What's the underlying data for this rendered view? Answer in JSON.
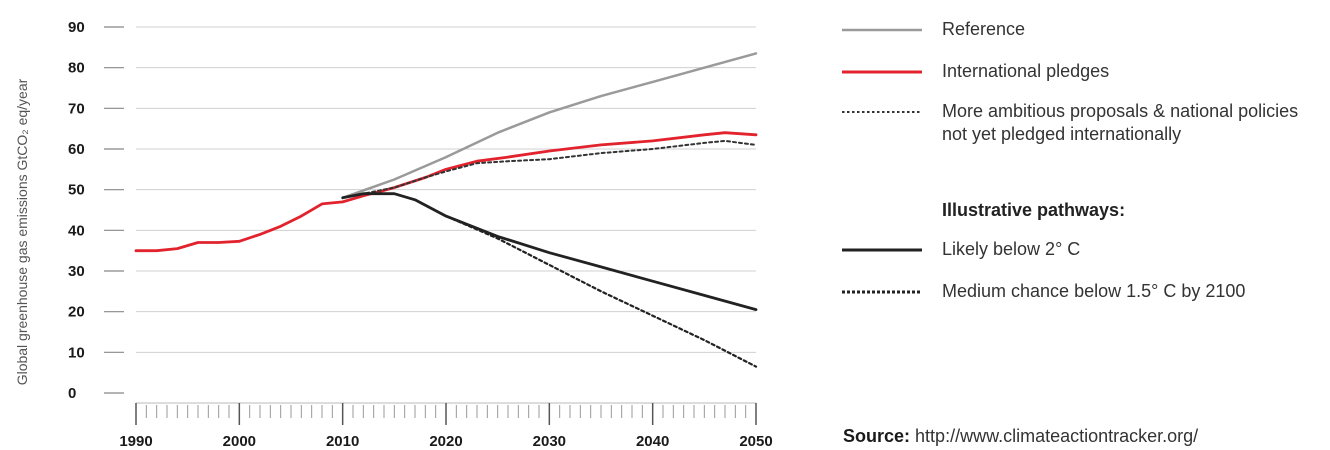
{
  "chart_data": {
    "type": "line",
    "ylabel": "Global greenhouse gas emissions GtCO₂ eq/year",
    "xlim": [
      1990,
      2050
    ],
    "ylim": [
      0,
      90
    ],
    "x_ticks": [
      1990,
      2000,
      2010,
      2020,
      2030,
      2040,
      2050
    ],
    "y_ticks": [
      0,
      10,
      20,
      30,
      40,
      50,
      60,
      70,
      80,
      90
    ],
    "grid": "horizontal",
    "legend_position": "right",
    "legend_heading": "Illustrative pathways:",
    "series": [
      {
        "name": "Reference",
        "color": "#9a9a9a",
        "style": "solid",
        "points": [
          [
            2010,
            48
          ],
          [
            2015,
            52.5
          ],
          [
            2020,
            58
          ],
          [
            2025,
            64
          ],
          [
            2030,
            69
          ],
          [
            2035,
            73
          ],
          [
            2040,
            76.5
          ],
          [
            2045,
            80
          ],
          [
            2050,
            83.5
          ]
        ]
      },
      {
        "name": "International pledges",
        "color": "#e2232e",
        "style": "solid",
        "points": [
          [
            1990,
            35
          ],
          [
            1992,
            35
          ],
          [
            1994,
            35.5
          ],
          [
            1996,
            37
          ],
          [
            1998,
            37
          ],
          [
            2000,
            37.3
          ],
          [
            2002,
            39
          ],
          [
            2004,
            41
          ],
          [
            2006,
            43.5
          ],
          [
            2008,
            46.5
          ],
          [
            2010,
            47
          ],
          [
            2012,
            48.5
          ],
          [
            2015,
            50.5
          ],
          [
            2018,
            53
          ],
          [
            2020,
            55
          ],
          [
            2023,
            57
          ],
          [
            2026,
            58
          ],
          [
            2030,
            59.5
          ],
          [
            2035,
            61
          ],
          [
            2040,
            62
          ],
          [
            2045,
            63.5
          ],
          [
            2047,
            64
          ],
          [
            2050,
            63.5
          ]
        ]
      },
      {
        "name": "More ambitious proposals & national policies not yet pledged internationally",
        "color": "#333333",
        "style": "dotted",
        "points": [
          [
            2010,
            48
          ],
          [
            2015,
            50.5
          ],
          [
            2018,
            53
          ],
          [
            2020,
            54.5
          ],
          [
            2023,
            56.5
          ],
          [
            2026,
            57
          ],
          [
            2030,
            57.5
          ],
          [
            2035,
            59
          ],
          [
            2040,
            60
          ],
          [
            2045,
            61.5
          ],
          [
            2047,
            62
          ],
          [
            2050,
            61
          ]
        ]
      },
      {
        "name": "Likely below 2° C",
        "color": "#222222",
        "style": "solid",
        "points": [
          [
            2010,
            48
          ],
          [
            2012,
            49
          ],
          [
            2015,
            49
          ],
          [
            2017,
            47.5
          ],
          [
            2020,
            43.5
          ],
          [
            2025,
            38.5
          ],
          [
            2030,
            34.5
          ],
          [
            2035,
            31
          ],
          [
            2040,
            27.5
          ],
          [
            2045,
            24
          ],
          [
            2050,
            20.5
          ]
        ]
      },
      {
        "name": "Medium chance below 1.5° C by 2100",
        "color": "#222222",
        "style": "dotted",
        "points": [
          [
            2017,
            47.5
          ],
          [
            2020,
            43.5
          ],
          [
            2025,
            38
          ],
          [
            2030,
            31.5
          ],
          [
            2035,
            25
          ],
          [
            2040,
            19
          ],
          [
            2045,
            13
          ],
          [
            2050,
            6.5
          ]
        ]
      }
    ]
  },
  "source": {
    "label": "Source:",
    "url": "http://www.climateactiontracker.org/"
  }
}
